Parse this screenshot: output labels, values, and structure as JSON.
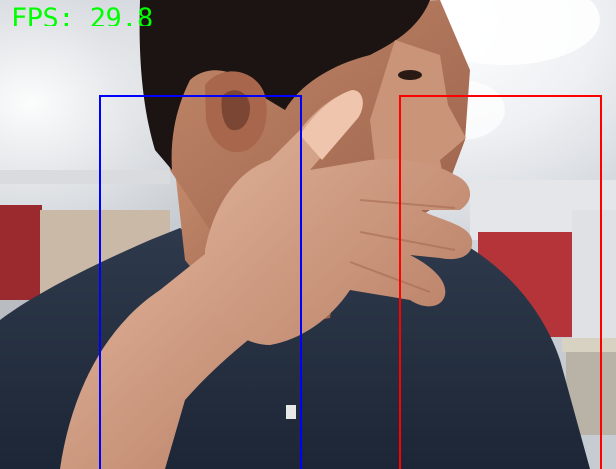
{
  "overlay": {
    "fps_text": "FPS: 29.8",
    "fps_color": "#00ff00"
  },
  "detections": {
    "left_zone_color": "#0000ff",
    "right_zone_color": "#ff0000"
  },
  "camera_feed": {
    "subject": "person-with-hand-near-face",
    "icon": "camera-icon"
  }
}
